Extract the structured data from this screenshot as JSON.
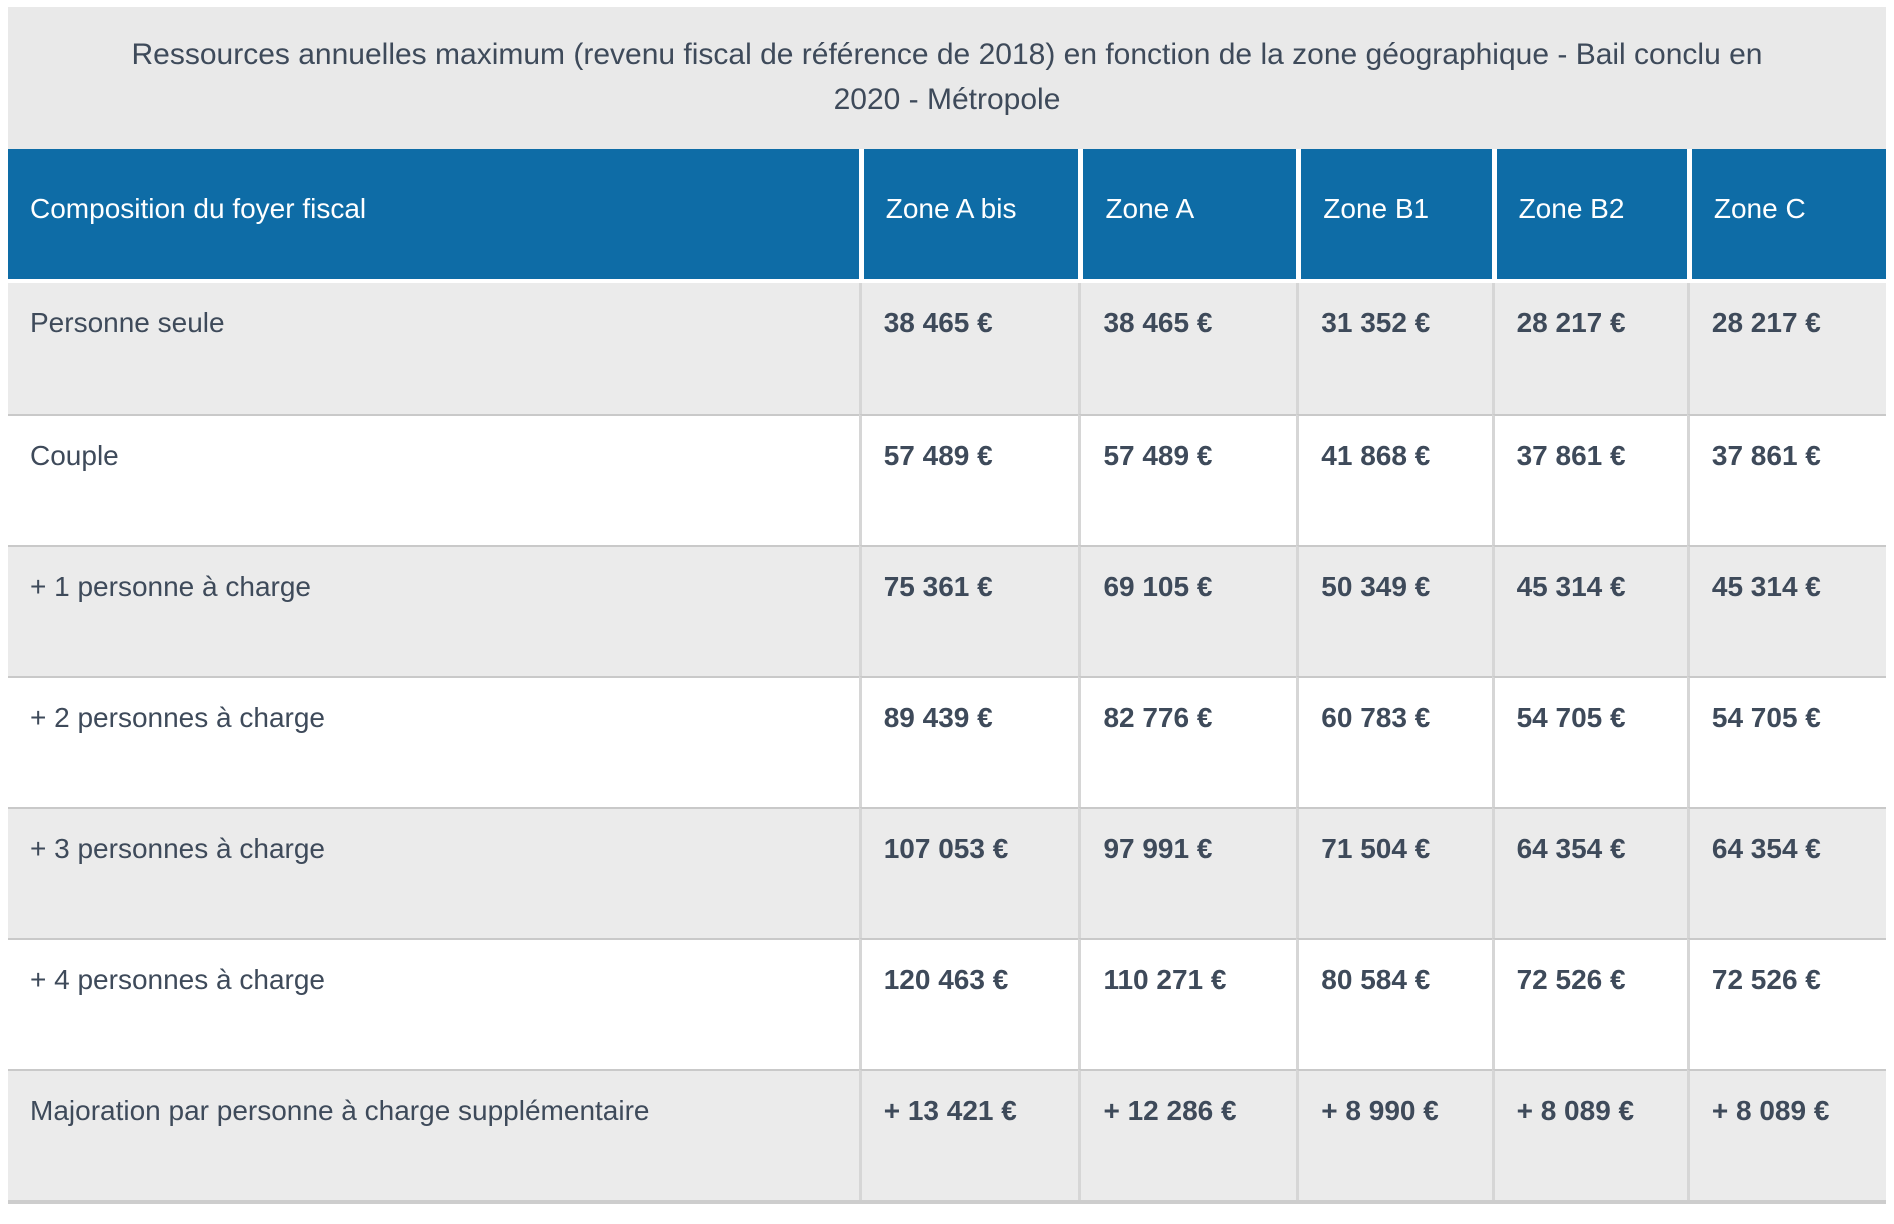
{
  "title": "Ressources annuelles maximum (revenu fiscal de référence de 2018) en fonction de la zone géographique - Bail conclu en 2020 - Métropole",
  "table": {
    "columns": [
      "Composition du foyer fiscal",
      "Zone A bis",
      "Zone A",
      "Zone B1",
      "Zone B2",
      "Zone C"
    ],
    "rows": [
      {
        "label": "Personne seule",
        "values": [
          "38 465 €",
          "38 465 €",
          "31 352 €",
          "28 217 €",
          "28 217 €"
        ]
      },
      {
        "label": "Couple",
        "values": [
          "57 489 €",
          "57 489 €",
          "41 868 €",
          "37 861 €",
          "37 861 €"
        ]
      },
      {
        "label": "+ 1 personne à charge",
        "values": [
          "75 361 €",
          "69 105 €",
          "50 349 €",
          "45 314 €",
          "45 314 €"
        ]
      },
      {
        "label": "+ 2 personnes à charge",
        "values": [
          "89 439 €",
          "82 776 €",
          "60 783 €",
          "54 705 €",
          "54 705 €"
        ]
      },
      {
        "label": "+ 3 personnes à charge",
        "values": [
          "107 053 €",
          "97 991 €",
          "71 504 €",
          "64 354 €",
          "64 354 €"
        ]
      },
      {
        "label": "+ 4 personnes à charge",
        "values": [
          "120 463 €",
          "110 271 €",
          "80 584 €",
          "72 526 €",
          "72 526 €"
        ]
      },
      {
        "label": "Majoration par personne à charge supplémentaire",
        "values": [
          "+ 13 421 €",
          "+ 12 286 €",
          "+ 8 990 €",
          "+ 8 089 €",
          "+ 8 089 €"
        ]
      }
    ]
  },
  "colors": {
    "header_background": "#0e6ca6",
    "header_text": "#ffffff",
    "title_background": "#e9e9e9",
    "row_alternate_background": "#ebebeb",
    "row_background": "#ffffff",
    "body_text": "#3e4a5a",
    "cell_border": "#d6d6d6",
    "row_border": "#c9c9c9"
  }
}
